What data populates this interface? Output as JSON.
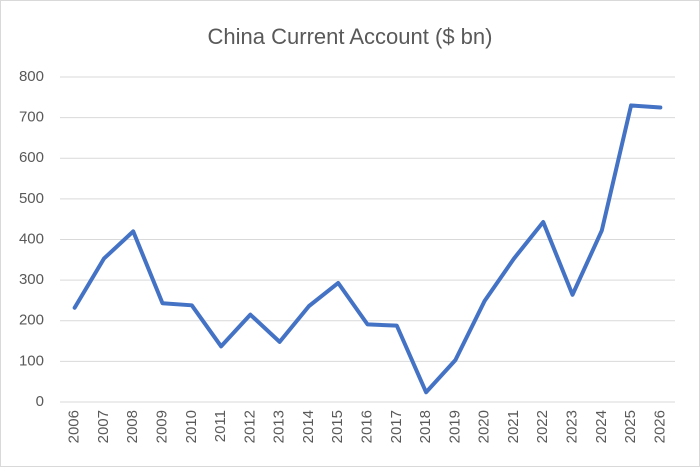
{
  "chart_data": {
    "type": "line",
    "title": "China Current Account ($ bn)",
    "categories": [
      "2006",
      "2007",
      "2008",
      "2009",
      "2010",
      "2011",
      "2012",
      "2013",
      "2014",
      "2015",
      "2016",
      "2017",
      "2018",
      "2019",
      "2020",
      "2021",
      "2022",
      "2023",
      "2024",
      "2025",
      "2026"
    ],
    "values": [
      232,
      353,
      420,
      243,
      238,
      137,
      215,
      148,
      236,
      293,
      191,
      188,
      24,
      103,
      249,
      353,
      443,
      264,
      422,
      730,
      725
    ],
    "color": "#4472c4",
    "ylim": [
      0,
      800
    ],
    "yticks": [
      0,
      100,
      200,
      300,
      400,
      500,
      600,
      700,
      800
    ],
    "grid": true
  }
}
